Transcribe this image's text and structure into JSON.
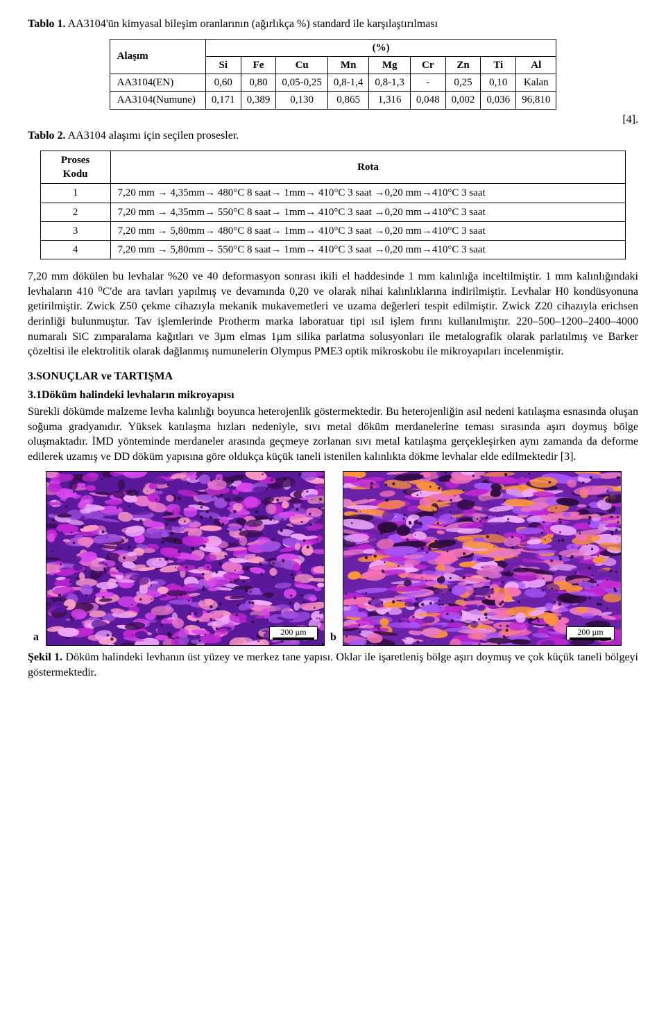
{
  "table1": {
    "caption_prefix": "Tablo 1.",
    "caption_rest": " AA3104'ün kimyasal bileşim oranlarının (ağırlıkça %) standard ile karşılaştırılması",
    "corner": "Alaşım",
    "group_header": "(%)",
    "columns": [
      "Si",
      "Fe",
      "Cu",
      "Mn",
      "Mg",
      "Cr",
      "Zn",
      "Ti",
      "Al"
    ],
    "rows": [
      {
        "name": "AA3104(EN)",
        "cells": [
          "0,60",
          "0,80",
          "0,05-0,25",
          "0,8-1,4",
          "0,8-1,3",
          "-",
          "0,25",
          "0,10",
          "Kalan"
        ]
      },
      {
        "name": "AA3104(Numune)",
        "cells": [
          "0,171",
          "0,389",
          "0,130",
          "0,865",
          "1,316",
          "0,048",
          "0,002",
          "0,036",
          "96,810"
        ]
      }
    ],
    "ref": "[4]."
  },
  "table2": {
    "caption_prefix": "Tablo 2.",
    "caption_rest": " AA3104 alaşımı için seçilen prosesler.",
    "col1": "Proses Kodu",
    "col2": "Rota",
    "rows": [
      {
        "code": "1",
        "route": "7,20 mm → 4,35mm→ 480°C 8 saat→ 1mm→ 410°C 3 saat →0,20 mm→410°C 3 saat"
      },
      {
        "code": "2",
        "route": "7,20 mm → 4,35mm→ 550°C 8 saat→ 1mm→ 410°C 3 saat →0,20 mm→410°C 3 saat"
      },
      {
        "code": "3",
        "route": "7,20 mm → 5,80mm→ 480°C 8 saat→ 1mm→ 410°C 3 saat →0,20 mm→410°C 3 saat"
      },
      {
        "code": "4",
        "route": "7,20 mm → 5,80mm→ 550°C 8 saat→ 1mm→ 410°C 3 saat →0,20 mm→410°C 3 saat"
      }
    ]
  },
  "body_para": "7,20 mm dökülen bu levhalar %20 ve 40 deformasyon sonrası ikili el haddesinde 1 mm kalınlığa inceltilmiştir. 1 mm kalınlığındaki levhaların 410 ⁰C'de ara tavları yapılmış ve devamında 0,20 ve olarak nihai kalınlıklarına indirilmiştir. Levhalar H0 kondüsyonuna getirilmiştir. Zwick Z50 çekme cihazıyla mekanik mukavemetleri ve uzama değerleri tespit edilmiştir. Zwick Z20 cihazıyla erichsen derinliği bulunmuştur. Tav işlemlerinde Protherm marka laboratuar tipi ısıl işlem fırını kullanılmıştır. 220–500–1200–2400–4000 numaralı SiC zımparalama kağıtları ve 3µm elmas 1µm silika parlatma solusyonları ile metalografik olarak parlatılmış ve Barker çözeltisi ile elektrolitik olarak dağlanmış numunelerin Olympus PME3 optik mikroskobu ile mikroyapıları incelenmiştir.",
  "section3": "3.SONUÇLAR ve TARTIŞMA",
  "section31_title": "3.1Döküm halindeki levhaların mikroyapısı",
  "section31_body": "Sürekli dökümde malzeme levha kalınlığı boyunca heterojenlik göstermektedir. Bu heterojenliğin asıl nedeni katılaşma esnasında oluşan soğuma gradyanıdır. Yüksek katılaşma hızları nedeniyle, sıvı metal döküm merdanelerine teması sırasında aşırı doymuş bölge oluşmaktadır. İMD yönteminde merdaneler arasında geçmeye zorlanan sıvı metal katılaşma gerçekleşirken aynı zamanda da deforme edilerek uzamış ve DD döküm yapısına göre oldukça küçük taneli istenilen kalınlıkta dökme levhalar elde edilmektedir [3].",
  "figure1": {
    "scale_text": "200 µm",
    "sub_a": "a",
    "sub_b": "b",
    "caption_prefix": "Şekil 1.",
    "caption_rest": " Döküm halindeki levhanın üst yüzey ve merkez tane yapısı. Oklar ile işaretleniş bölge aşırı doymuş ve çok küçük taneli bölgeyi göstermektedir.",
    "micrograph_a_colors": [
      "#e879c8",
      "#d946ef",
      "#9d4edd",
      "#5a189a",
      "#ff9ec6",
      "#3a0e52",
      "#f0abfc",
      "#c026d3"
    ],
    "micrograph_b_colors": [
      "#f472b6",
      "#e879c8",
      "#a855f7",
      "#6b21a8",
      "#fb923c",
      "#2e0b3e",
      "#f0abfc",
      "#c026d3"
    ]
  }
}
